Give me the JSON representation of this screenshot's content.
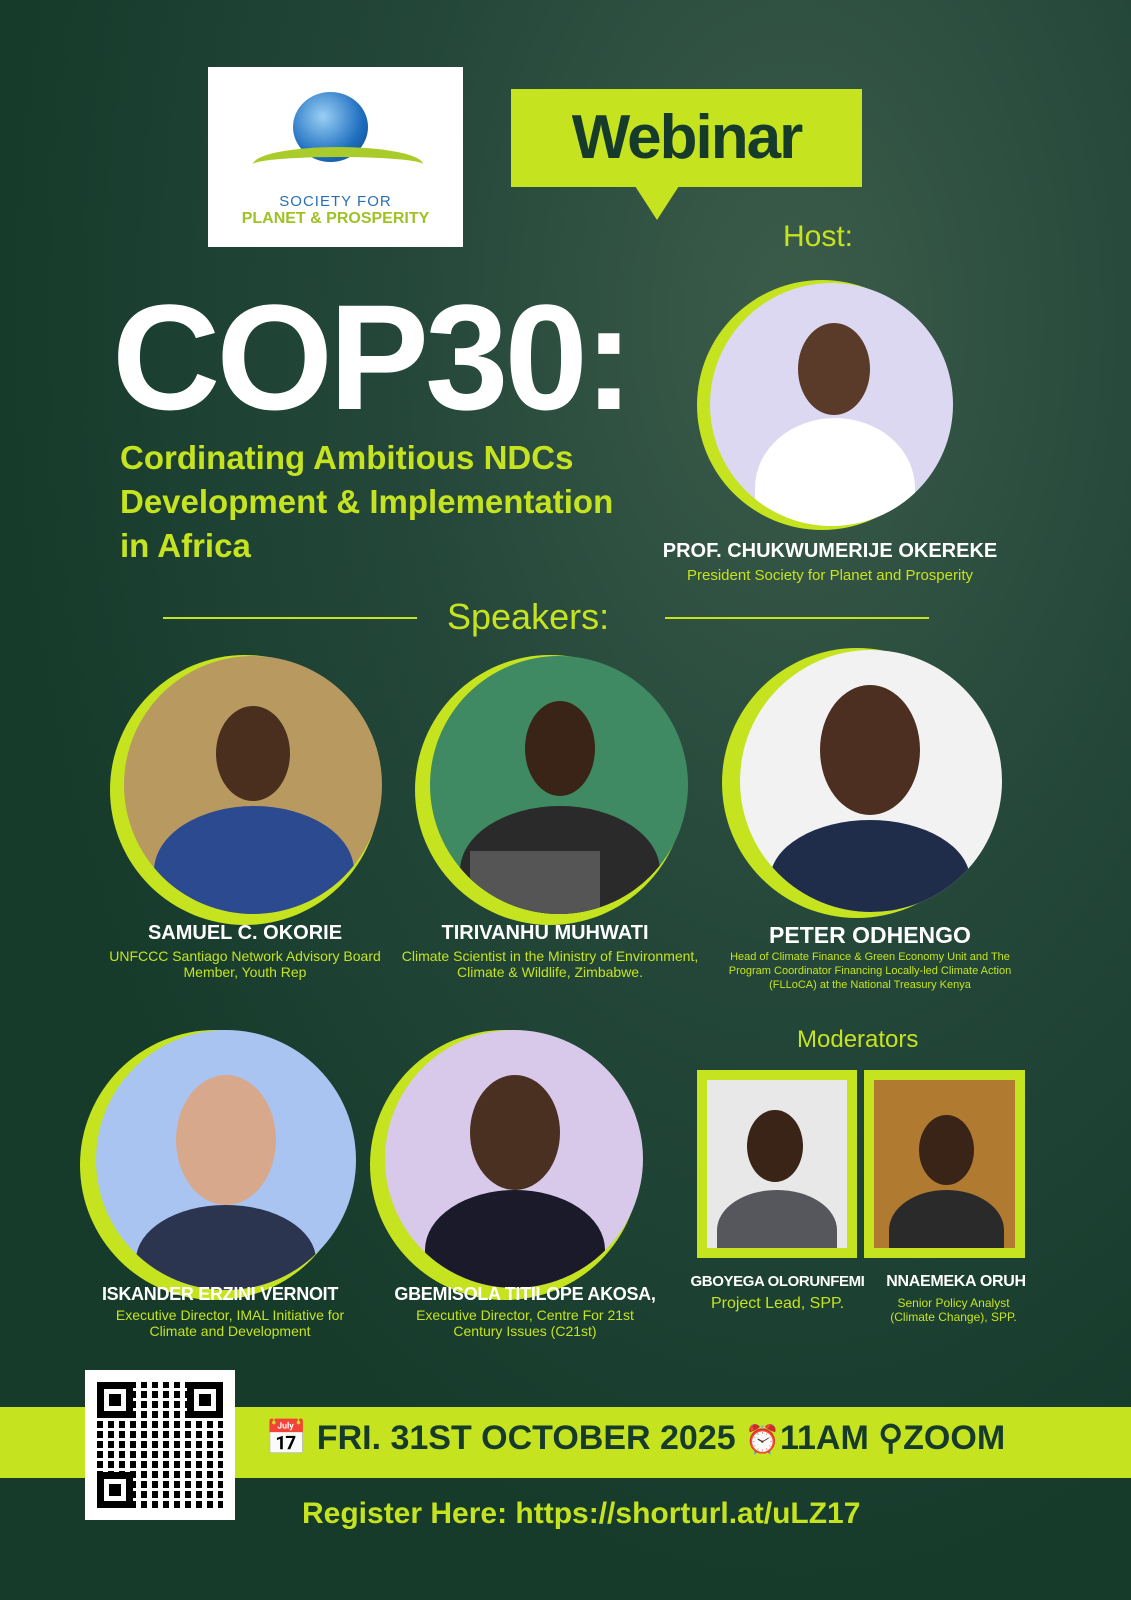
{
  "logo": {
    "line1": "SOCIETY FOR",
    "line2": "PLANET & PROSPERITY"
  },
  "badge": "Webinar",
  "host_label": "Host:",
  "title": "COP30:",
  "subtitle": [
    "Cordinating Ambitious NDCs",
    "Development & Implementation",
    "in Africa"
  ],
  "host": {
    "name": "PROF. CHUKWUMERIJE OKEREKE",
    "role": "President Society for Planet and Prosperity"
  },
  "speakers_label": "Speakers:",
  "speakers": [
    {
      "name": "SAMUEL C. OKORIE",
      "role": "UNFCCC Santiago Network Advisory Board Member, Youth Rep"
    },
    {
      "name": "TIRIVANHU MUHWATI",
      "role": "Climate Scientist in the Ministry of Environment, Climate & Wildlife, Zimbabwe."
    },
    {
      "name": "PETER ODHENGO",
      "role": "Head of Climate Finance & Green Economy Unit and The Program Coordinator Financing Locally-led Climate Action (FLLoCA) at the National Treasury Kenya"
    },
    {
      "name": "ISKANDER ERZINI VERNOIT",
      "role": "Executive Director, IMAL Initiative for Climate and Development"
    },
    {
      "name": "GBEMISOLA TITILOPE AKOSA,",
      "role": "Executive Director, Centre For 21st Century Issues (C21st)"
    }
  ],
  "moderators_label": "Moderators",
  "moderators": [
    {
      "name": "GBOYEGA OLORUNFEMI",
      "role": "Project Lead, SPP."
    },
    {
      "name": "NNAEMEKA ORUH",
      "role": "Senior Policy Analyst (Climate Change), SPP."
    }
  ],
  "event": {
    "date": "FRI. 31ST OCTOBER 2025",
    "time": "11AM",
    "venue": "ZOOM"
  },
  "register": "Register Here:  https://shorturl.at/uLZ17",
  "colors": {
    "background": "#163b2b",
    "accent": "#c5e31f"
  }
}
